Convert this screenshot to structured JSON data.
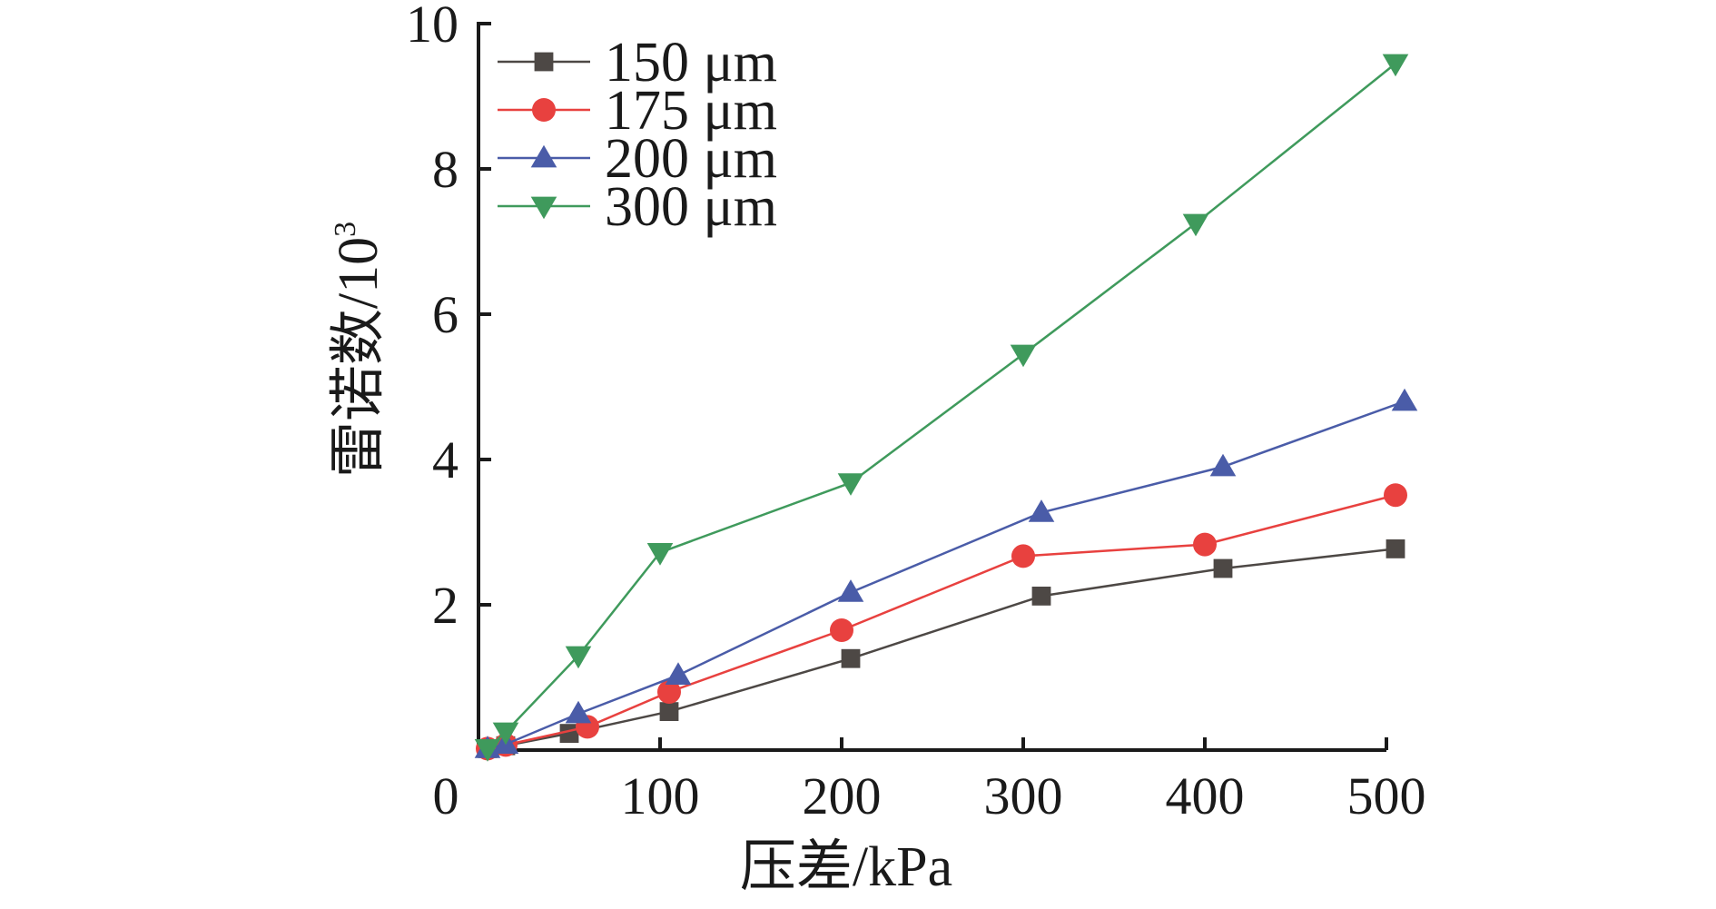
{
  "chart_data": {
    "type": "line",
    "title": "",
    "xlabel": "压差/kPa",
    "ylabel_main": "雷诺数/10",
    "ylabel_sup": "3",
    "xlim": [
      0,
      500
    ],
    "ylim": [
      0,
      10
    ],
    "xticks": [
      "0",
      "100",
      "200",
      "300",
      "400",
      "500"
    ],
    "yticks": [
      "2",
      "4",
      "6",
      "8",
      "10"
    ],
    "legend_position": "top-left",
    "series": [
      {
        "name": "150 μm",
        "marker": "square",
        "color": "#4d4845",
        "x": [
          5,
          15,
          50,
          105,
          205,
          310,
          410,
          505
        ],
        "y": [
          0.02,
          0.06,
          0.23,
          0.53,
          1.26,
          2.12,
          2.5,
          2.77
        ]
      },
      {
        "name": "175 μm",
        "marker": "circle",
        "color": "#e8413f",
        "x": [
          5,
          15,
          60,
          105,
          200,
          300,
          400,
          505
        ],
        "y": [
          0.02,
          0.07,
          0.32,
          0.8,
          1.65,
          2.67,
          2.83,
          3.51
        ]
      },
      {
        "name": "200 μm",
        "marker": "triangle-up",
        "color": "#4a5ca8",
        "x": [
          5,
          15,
          55,
          110,
          205,
          310,
          410,
          510
        ],
        "y": [
          0.02,
          0.08,
          0.5,
          1.03,
          2.17,
          3.27,
          3.9,
          4.8
        ]
      },
      {
        "name": "300 μm",
        "marker": "triangle-down",
        "color": "#3f9a5c",
        "x": [
          5,
          15,
          55,
          100,
          205,
          300,
          395,
          505
        ],
        "y": [
          0.02,
          0.25,
          1.3,
          2.72,
          3.68,
          5.45,
          7.25,
          9.45
        ]
      }
    ]
  }
}
